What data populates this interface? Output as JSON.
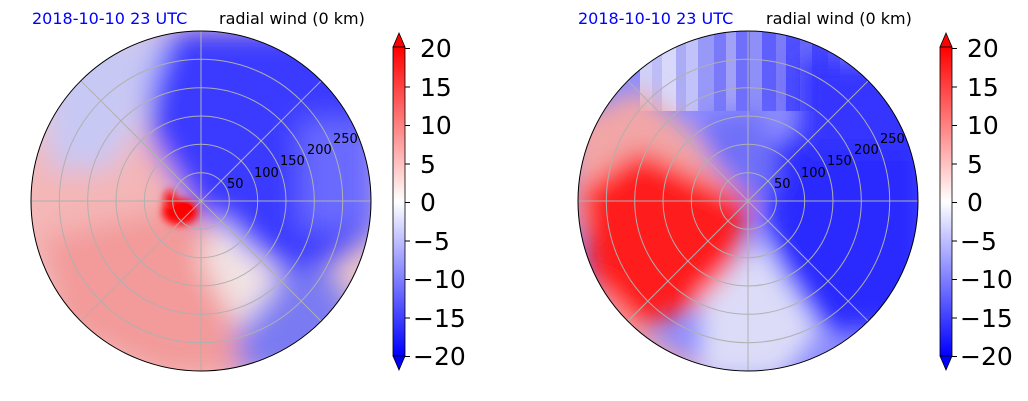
{
  "chart_data": [
    {
      "type": "heatmap",
      "projection": "polar",
      "title_left": "2018-10-10 23 UTC",
      "title_right": "radial wind (0 km)",
      "title_left_color": "#0000ff",
      "radial_ticks": [
        "50",
        "100",
        "150",
        "200",
        "250"
      ],
      "radial_tick_values": [
        50,
        100,
        150,
        200,
        250
      ],
      "rlim": [
        0,
        300
      ],
      "grid": true,
      "colormap": "bwr",
      "colorbar_ticks": [
        "20",
        "15",
        "10",
        "5",
        "0",
        "−5",
        "−10",
        "−15",
        "−20"
      ],
      "clim": [
        -20,
        20
      ],
      "field_summary": "blue (negative) north and east of center, red (positive) west and southwest, strong red core just west of center"
    },
    {
      "type": "heatmap",
      "projection": "polar",
      "title_left": "2018-10-10 23 UTC",
      "title_right": "radial wind (0 km)",
      "title_left_color": "#0000ff",
      "radial_ticks": [
        "50",
        "100",
        "150",
        "200",
        "250"
      ],
      "radial_tick_values": [
        50,
        100,
        150,
        200,
        250
      ],
      "rlim": [
        0,
        300
      ],
      "grid": true,
      "colormap": "bwr",
      "colorbar_ticks": [
        "20",
        "15",
        "10",
        "5",
        "0",
        "−5",
        "−10",
        "−15",
        "−20"
      ],
      "clim": [
        -20,
        20
      ],
      "field_summary": "broad saturated red region west and southwest of center, blue north and east"
    }
  ]
}
